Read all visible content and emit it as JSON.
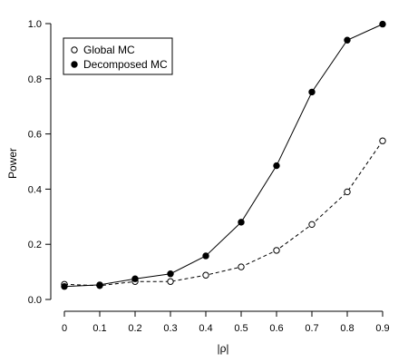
{
  "chart_data": {
    "type": "line",
    "xlabel": "|ρ|",
    "ylabel": "Power",
    "x": [
      0,
      0.1,
      0.2,
      0.3,
      0.4,
      0.5,
      0.6,
      0.7,
      0.8,
      0.9
    ],
    "xlim": [
      0,
      0.9
    ],
    "ylim": [
      0,
      1
    ],
    "xticks": [
      "0",
      "0.1",
      "0.2",
      "0.3",
      "0.4",
      "0.5",
      "0.6",
      "0.7",
      "0.8",
      "0.9"
    ],
    "yticks": [
      "0.0",
      "0.2",
      "0.4",
      "0.6",
      "0.8",
      "1.0"
    ],
    "grid": false,
    "legend_position": "top-left",
    "series": [
      {
        "name": "Global MC",
        "marker": "open-circle",
        "line_style": "dashed",
        "values": [
          0.055,
          0.05,
          0.065,
          0.065,
          0.088,
          0.118,
          0.178,
          0.272,
          0.39,
          0.575
        ]
      },
      {
        "name": "Decomposed MC",
        "marker": "filled-circle",
        "line_style": "solid",
        "values": [
          0.047,
          0.053,
          0.075,
          0.093,
          0.158,
          0.28,
          0.485,
          0.752,
          0.94,
          0.998
        ]
      }
    ]
  }
}
